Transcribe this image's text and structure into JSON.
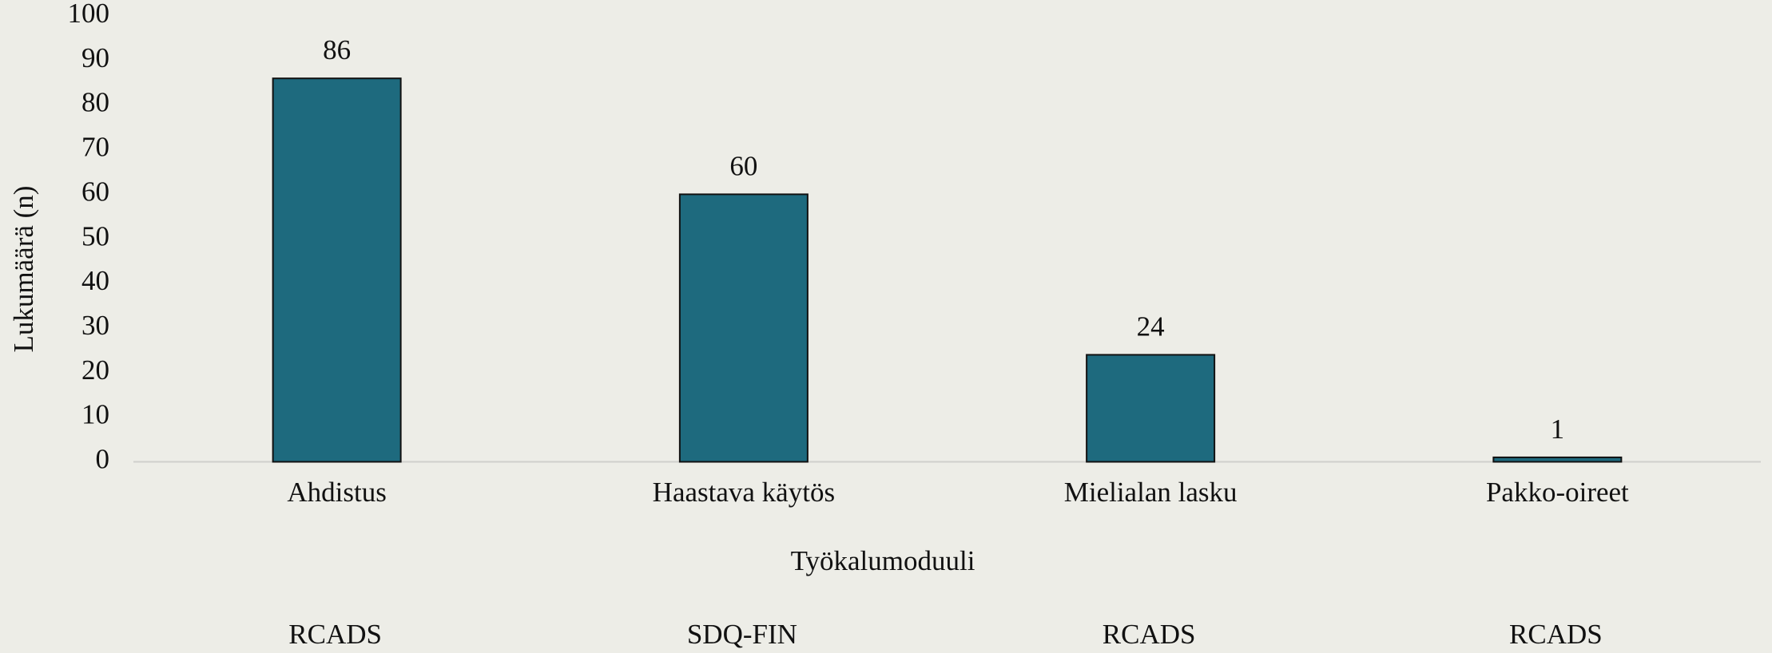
{
  "chart_data": {
    "type": "bar",
    "x_label": "Työkalumoduuli",
    "y_label": "Lukumäärä (n)",
    "categories": [
      "Ahdistus",
      "Haastava käytös",
      "Mielialan lasku",
      "Pakko-oireet"
    ],
    "sublabels": [
      "RCADS",
      "SDQ-FIN",
      "RCADS",
      "RCADS"
    ],
    "values": [
      86,
      60,
      24,
      1
    ],
    "color": "#1e6a7e",
    "ylim": [
      0,
      100
    ],
    "yticks": [
      0,
      10,
      20,
      30,
      40,
      50,
      60,
      70,
      80,
      90,
      100
    ],
    "grid": false
  }
}
